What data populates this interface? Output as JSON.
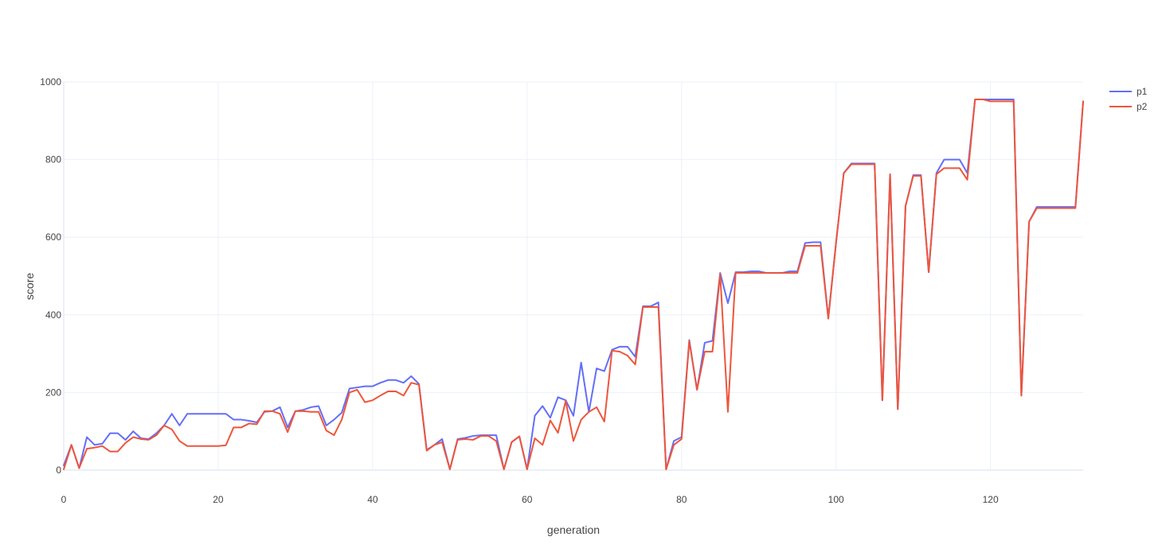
{
  "chart_data": {
    "type": "line",
    "title": "",
    "xlabel": "generation",
    "ylabel": "score",
    "xlim": [
      0,
      132
    ],
    "ylim": [
      0,
      1000
    ],
    "x_ticks": [
      0,
      20,
      40,
      60,
      80,
      100,
      120
    ],
    "y_ticks": [
      0,
      200,
      400,
      600,
      800,
      1000
    ],
    "grid": true,
    "legend_position": "top-right",
    "series": [
      {
        "name": "p1",
        "color": "#636efa",
        "x": [
          0,
          1,
          2,
          3,
          4,
          5,
          6,
          7,
          8,
          9,
          10,
          11,
          12,
          13,
          14,
          15,
          16,
          17,
          18,
          19,
          20,
          21,
          22,
          23,
          24,
          25,
          26,
          27,
          28,
          29,
          30,
          31,
          32,
          33,
          34,
          35,
          36,
          37,
          38,
          39,
          40,
          41,
          42,
          43,
          44,
          45,
          46,
          47,
          48,
          49,
          50,
          51,
          52,
          53,
          54,
          55,
          56,
          57,
          58,
          59,
          60,
          61,
          62,
          63,
          64,
          65,
          66,
          67,
          68,
          69,
          70,
          71,
          72,
          73,
          74,
          75,
          76,
          77,
          78,
          79,
          80,
          81,
          82,
          83,
          84,
          85,
          86,
          87,
          88,
          89,
          90,
          91,
          92,
          93,
          94,
          95,
          96,
          97,
          98,
          99,
          100,
          101,
          102,
          103,
          104,
          105,
          106,
          107,
          108,
          109,
          110,
          111,
          112,
          113,
          114,
          115,
          116,
          117,
          118,
          119,
          120,
          121,
          122,
          123,
          124,
          125,
          126,
          127,
          128,
          129,
          130,
          131,
          132
        ],
        "values": [
          12,
          65,
          5,
          85,
          65,
          68,
          95,
          95,
          78,
          100,
          82,
          80,
          95,
          115,
          145,
          115,
          145,
          145,
          145,
          145,
          145,
          145,
          130,
          130,
          127,
          123,
          150,
          152,
          162,
          110,
          152,
          155,
          162,
          165,
          115,
          130,
          148,
          210,
          213,
          216,
          216,
          225,
          232,
          232,
          225,
          242,
          222,
          52,
          65,
          80,
          2,
          80,
          83,
          88,
          90,
          90,
          90,
          2,
          72,
          87,
          2,
          140,
          165,
          135,
          188,
          180,
          140,
          277,
          150,
          262,
          255,
          310,
          318,
          318,
          292,
          422,
          422,
          432,
          2,
          75,
          85,
          335,
          207,
          328,
          333,
          508,
          430,
          510,
          510,
          512,
          512,
          508,
          508,
          508,
          512,
          512,
          585,
          587,
          587,
          392,
          585,
          765,
          790,
          790,
          790,
          790,
          180,
          762,
          157,
          680,
          760,
          760,
          510,
          765,
          800,
          800,
          800,
          765,
          955,
          955,
          955,
          955,
          955,
          955,
          192,
          640,
          678,
          678,
          678,
          678,
          678,
          678,
          950
        ],
        "data_name_suffix": "p1"
      },
      {
        "name": "p2",
        "color": "#ef553b",
        "x": [
          0,
          1,
          2,
          3,
          4,
          5,
          6,
          7,
          8,
          9,
          10,
          11,
          12,
          13,
          14,
          15,
          16,
          17,
          18,
          19,
          20,
          21,
          22,
          23,
          24,
          25,
          26,
          27,
          28,
          29,
          30,
          31,
          32,
          33,
          34,
          35,
          36,
          37,
          38,
          39,
          40,
          41,
          42,
          43,
          44,
          45,
          46,
          47,
          48,
          49,
          50,
          51,
          52,
          53,
          54,
          55,
          56,
          57,
          58,
          59,
          60,
          61,
          62,
          63,
          64,
          65,
          66,
          67,
          68,
          69,
          70,
          71,
          72,
          73,
          74,
          75,
          76,
          77,
          78,
          79,
          80,
          81,
          82,
          83,
          84,
          85,
          86,
          87,
          88,
          89,
          90,
          91,
          92,
          93,
          94,
          95,
          96,
          97,
          98,
          99,
          100,
          101,
          102,
          103,
          104,
          105,
          106,
          107,
          108,
          109,
          110,
          111,
          112,
          113,
          114,
          115,
          116,
          117,
          118,
          119,
          120,
          121,
          122,
          123,
          124,
          125,
          126,
          127,
          128,
          129,
          130,
          131,
          132
        ],
        "values": [
          2,
          65,
          5,
          55,
          58,
          62,
          48,
          48,
          70,
          85,
          80,
          78,
          90,
          115,
          105,
          75,
          62,
          62,
          62,
          62,
          62,
          64,
          110,
          110,
          120,
          118,
          152,
          152,
          145,
          98,
          152,
          152,
          150,
          150,
          102,
          90,
          130,
          200,
          207,
          175,
          180,
          192,
          203,
          203,
          192,
          225,
          220,
          50,
          65,
          72,
          2,
          78,
          80,
          78,
          88,
          88,
          75,
          2,
          72,
          87,
          2,
          82,
          65,
          128,
          96,
          178,
          75,
          130,
          150,
          162,
          125,
          308,
          305,
          295,
          272,
          420,
          420,
          420,
          2,
          65,
          80,
          332,
          207,
          305,
          305,
          505,
          150,
          508,
          508,
          508,
          508,
          508,
          508,
          508,
          508,
          508,
          578,
          578,
          578,
          390,
          585,
          765,
          788,
          788,
          788,
          788,
          180,
          762,
          157,
          680,
          758,
          758,
          510,
          762,
          778,
          778,
          778,
          748,
          955,
          955,
          950,
          950,
          950,
          950,
          192,
          640,
          675,
          675,
          675,
          675,
          675,
          675,
          950
        ],
        "data_name_suffix": "p2"
      }
    ]
  }
}
